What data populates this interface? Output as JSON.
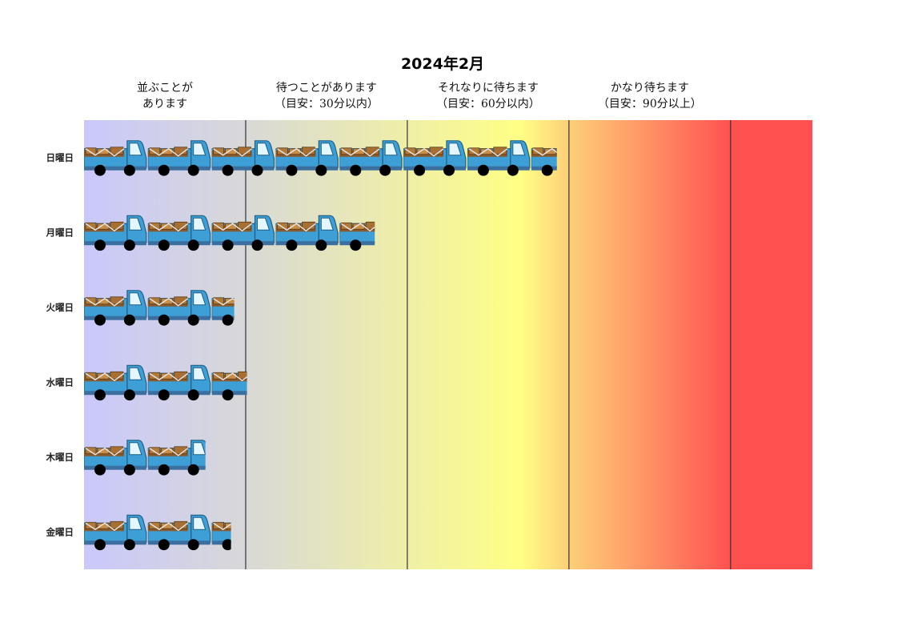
{
  "chart_data": {
    "type": "bar",
    "title": "2024年2月",
    "orientation": "horizontal",
    "categories": [
      "日曜日",
      "月曜日",
      "火曜日",
      "水曜日",
      "木曜日",
      "金曜日"
    ],
    "values": [
      7.4,
      4.55,
      2.35,
      2.55,
      1.9,
      2.3
    ],
    "unit_note": "bar length measured in truck icons (1 icon = one truck unit)",
    "xlim": [
      0,
      11.4
    ],
    "bands": [
      {
        "lines": [
          "並ぶことが",
          "あります"
        ],
        "start": 0,
        "end": 2.53
      },
      {
        "lines": [
          "待つことがあります",
          "（目安：30分以内）"
        ],
        "start": 2.53,
        "end": 5.06
      },
      {
        "lines": [
          "それなりに待ちます",
          "（目安：60分以内）"
        ],
        "start": 5.06,
        "end": 7.59
      },
      {
        "lines": [
          "かなり待ちます",
          "（目安：90分以上）"
        ],
        "start": 7.59,
        "end": 10.12
      }
    ],
    "gradient_colors": [
      "#c9c8fb",
      "#d8d8d8",
      "#ffff85",
      "#fdd379",
      "#ff5050"
    ],
    "divider_color": "#333333",
    "truck_colors": {
      "body": "#3399cc",
      "cargo": "#a0642d",
      "wheel": "#000000",
      "window": "#dff3ff"
    }
  }
}
